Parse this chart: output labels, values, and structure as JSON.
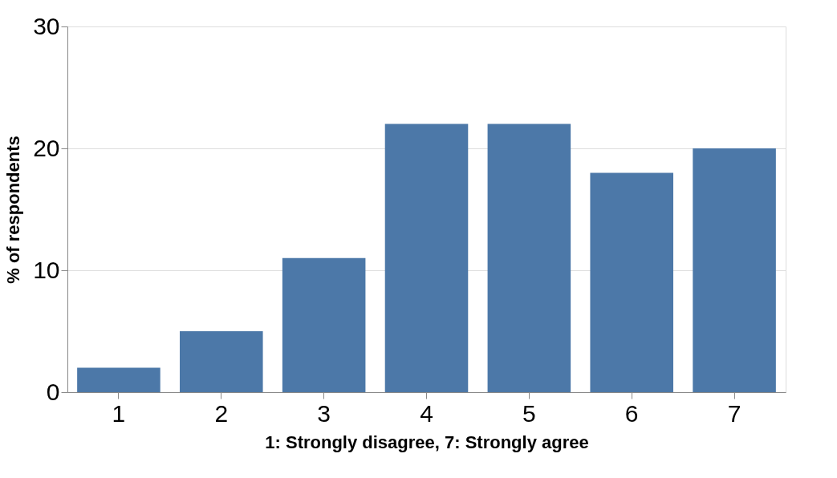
{
  "chart_data": {
    "type": "bar",
    "xlabel": "1: Strongly disagree, 7: Strongly agree",
    "ylabel": "% of respondents",
    "categories": [
      "1",
      "2",
      "3",
      "4",
      "5",
      "6",
      "7"
    ],
    "values": [
      2,
      5,
      11,
      22,
      22,
      18,
      20
    ],
    "color": "#4c78a8",
    "ylim": [
      0,
      30
    ],
    "yticks": [
      0,
      10,
      20,
      30
    ],
    "grid": "y"
  }
}
